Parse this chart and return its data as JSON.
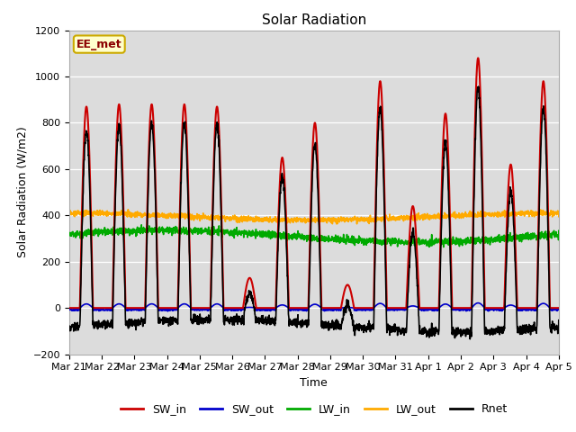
{
  "title": "Solar Radiation",
  "xlabel": "Time",
  "ylabel": "Solar Radiation (W/m2)",
  "annotation": "EE_met",
  "ylim": [
    -200,
    1200
  ],
  "yticks": [
    -200,
    0,
    200,
    400,
    600,
    800,
    1000,
    1200
  ],
  "n_points": 2160,
  "xtick_labels": [
    "Mar 21",
    "Mar 22",
    "Mar 23",
    "Mar 24",
    "Mar 25",
    "Mar 26",
    "Mar 27",
    "Mar 28",
    "Mar 29",
    "Mar 30",
    "Mar 31",
    "Apr 1",
    "Apr 2",
    "Apr 3",
    "Apr 4",
    "Apr 5"
  ],
  "bg_color": "#dcdcdc",
  "fig_bg": "#ffffff",
  "line_colors": {
    "SW_in": "#cc0000",
    "SW_out": "#0000cc",
    "LW_in": "#00aa00",
    "LW_out": "#ffaa00",
    "Rnet": "#000000"
  },
  "peak_amps": [
    870,
    880,
    880,
    880,
    870,
    130,
    650,
    800,
    100,
    980,
    440,
    840,
    1080,
    620,
    980,
    0
  ],
  "day_start": 0.33,
  "day_end": 0.73,
  "LW_in_base": 310,
  "LW_out_base": 390,
  "seed": 42
}
